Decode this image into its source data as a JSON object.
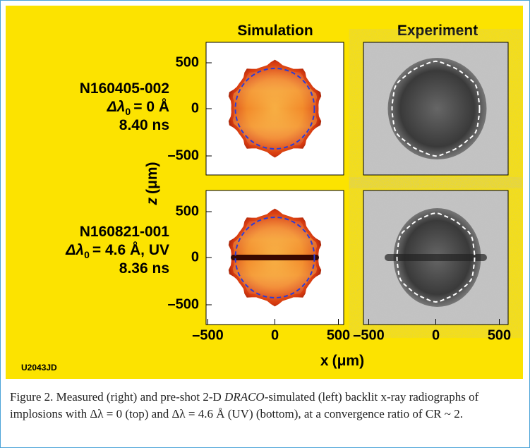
{
  "figure": {
    "columns": [
      "Simulation",
      "Experiment"
    ],
    "rows": [
      {
        "shot": "N160405-002",
        "symbol": "Δλ",
        "subscript": "0",
        "detail": "= 0 Å",
        "time": "8.40 ns"
      },
      {
        "shot": "N160821-001",
        "symbol": "Δλ",
        "subscript": "0",
        "detail": "= 4.6 Å, UV",
        "time": "8.36 ns"
      }
    ],
    "y_label": {
      "axis": "z",
      "unit": "(μm)"
    },
    "x_label": {
      "axis": "x",
      "unit": "(μm)"
    },
    "ticks": [
      "500",
      "0",
      "–500"
    ],
    "code": "U2043JD"
  },
  "caption": {
    "before": "Figure 2. Measured (right) and pre-shot 2-D ",
    "emphasis": "DRACO",
    "after": "-simulated (left) backlit x-ray radiographs of implosions with Δλ = 0 (top) and Δλ = 4.6 Å (UV) (bottom), at a convergence ratio of CR ~ 2."
  }
}
